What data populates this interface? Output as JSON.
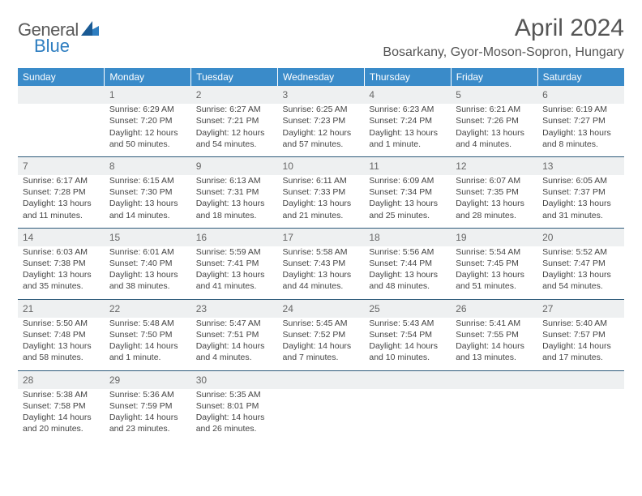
{
  "brand": {
    "name_a": "General",
    "name_b": "Blue"
  },
  "title": "April 2024",
  "location": "Bosarkany, Gyor-Moson-Sopron, Hungary",
  "colors": {
    "header_bg": "#3a8bc9",
    "header_text": "#ffffff",
    "daynum_bg": "#eef0f1",
    "daynum_border": "#2d5a7a",
    "body_text": "#444444",
    "title_text": "#555555",
    "logo_gray": "#5a5a5a",
    "logo_blue": "#2d7dc0"
  },
  "weekdays": [
    "Sunday",
    "Monday",
    "Tuesday",
    "Wednesday",
    "Thursday",
    "Friday",
    "Saturday"
  ],
  "weeks": [
    {
      "nums": [
        "",
        "1",
        "2",
        "3",
        "4",
        "5",
        "6"
      ],
      "cells": [
        [],
        [
          "Sunrise: 6:29 AM",
          "Sunset: 7:20 PM",
          "Daylight: 12 hours",
          "and 50 minutes."
        ],
        [
          "Sunrise: 6:27 AM",
          "Sunset: 7:21 PM",
          "Daylight: 12 hours",
          "and 54 minutes."
        ],
        [
          "Sunrise: 6:25 AM",
          "Sunset: 7:23 PM",
          "Daylight: 12 hours",
          "and 57 minutes."
        ],
        [
          "Sunrise: 6:23 AM",
          "Sunset: 7:24 PM",
          "Daylight: 13 hours",
          "and 1 minute."
        ],
        [
          "Sunrise: 6:21 AM",
          "Sunset: 7:26 PM",
          "Daylight: 13 hours",
          "and 4 minutes."
        ],
        [
          "Sunrise: 6:19 AM",
          "Sunset: 7:27 PM",
          "Daylight: 13 hours",
          "and 8 minutes."
        ]
      ]
    },
    {
      "nums": [
        "7",
        "8",
        "9",
        "10",
        "11",
        "12",
        "13"
      ],
      "cells": [
        [
          "Sunrise: 6:17 AM",
          "Sunset: 7:28 PM",
          "Daylight: 13 hours",
          "and 11 minutes."
        ],
        [
          "Sunrise: 6:15 AM",
          "Sunset: 7:30 PM",
          "Daylight: 13 hours",
          "and 14 minutes."
        ],
        [
          "Sunrise: 6:13 AM",
          "Sunset: 7:31 PM",
          "Daylight: 13 hours",
          "and 18 minutes."
        ],
        [
          "Sunrise: 6:11 AM",
          "Sunset: 7:33 PM",
          "Daylight: 13 hours",
          "and 21 minutes."
        ],
        [
          "Sunrise: 6:09 AM",
          "Sunset: 7:34 PM",
          "Daylight: 13 hours",
          "and 25 minutes."
        ],
        [
          "Sunrise: 6:07 AM",
          "Sunset: 7:35 PM",
          "Daylight: 13 hours",
          "and 28 minutes."
        ],
        [
          "Sunrise: 6:05 AM",
          "Sunset: 7:37 PM",
          "Daylight: 13 hours",
          "and 31 minutes."
        ]
      ]
    },
    {
      "nums": [
        "14",
        "15",
        "16",
        "17",
        "18",
        "19",
        "20"
      ],
      "cells": [
        [
          "Sunrise: 6:03 AM",
          "Sunset: 7:38 PM",
          "Daylight: 13 hours",
          "and 35 minutes."
        ],
        [
          "Sunrise: 6:01 AM",
          "Sunset: 7:40 PM",
          "Daylight: 13 hours",
          "and 38 minutes."
        ],
        [
          "Sunrise: 5:59 AM",
          "Sunset: 7:41 PM",
          "Daylight: 13 hours",
          "and 41 minutes."
        ],
        [
          "Sunrise: 5:58 AM",
          "Sunset: 7:43 PM",
          "Daylight: 13 hours",
          "and 44 minutes."
        ],
        [
          "Sunrise: 5:56 AM",
          "Sunset: 7:44 PM",
          "Daylight: 13 hours",
          "and 48 minutes."
        ],
        [
          "Sunrise: 5:54 AM",
          "Sunset: 7:45 PM",
          "Daylight: 13 hours",
          "and 51 minutes."
        ],
        [
          "Sunrise: 5:52 AM",
          "Sunset: 7:47 PM",
          "Daylight: 13 hours",
          "and 54 minutes."
        ]
      ]
    },
    {
      "nums": [
        "21",
        "22",
        "23",
        "24",
        "25",
        "26",
        "27"
      ],
      "cells": [
        [
          "Sunrise: 5:50 AM",
          "Sunset: 7:48 PM",
          "Daylight: 13 hours",
          "and 58 minutes."
        ],
        [
          "Sunrise: 5:48 AM",
          "Sunset: 7:50 PM",
          "Daylight: 14 hours",
          "and 1 minute."
        ],
        [
          "Sunrise: 5:47 AM",
          "Sunset: 7:51 PM",
          "Daylight: 14 hours",
          "and 4 minutes."
        ],
        [
          "Sunrise: 5:45 AM",
          "Sunset: 7:52 PM",
          "Daylight: 14 hours",
          "and 7 minutes."
        ],
        [
          "Sunrise: 5:43 AM",
          "Sunset: 7:54 PM",
          "Daylight: 14 hours",
          "and 10 minutes."
        ],
        [
          "Sunrise: 5:41 AM",
          "Sunset: 7:55 PM",
          "Daylight: 14 hours",
          "and 13 minutes."
        ],
        [
          "Sunrise: 5:40 AM",
          "Sunset: 7:57 PM",
          "Daylight: 14 hours",
          "and 17 minutes."
        ]
      ]
    },
    {
      "nums": [
        "28",
        "29",
        "30",
        "",
        "",
        "",
        ""
      ],
      "cells": [
        [
          "Sunrise: 5:38 AM",
          "Sunset: 7:58 PM",
          "Daylight: 14 hours",
          "and 20 minutes."
        ],
        [
          "Sunrise: 5:36 AM",
          "Sunset: 7:59 PM",
          "Daylight: 14 hours",
          "and 23 minutes."
        ],
        [
          "Sunrise: 5:35 AM",
          "Sunset: 8:01 PM",
          "Daylight: 14 hours",
          "and 26 minutes."
        ],
        [],
        [],
        [],
        []
      ]
    }
  ]
}
